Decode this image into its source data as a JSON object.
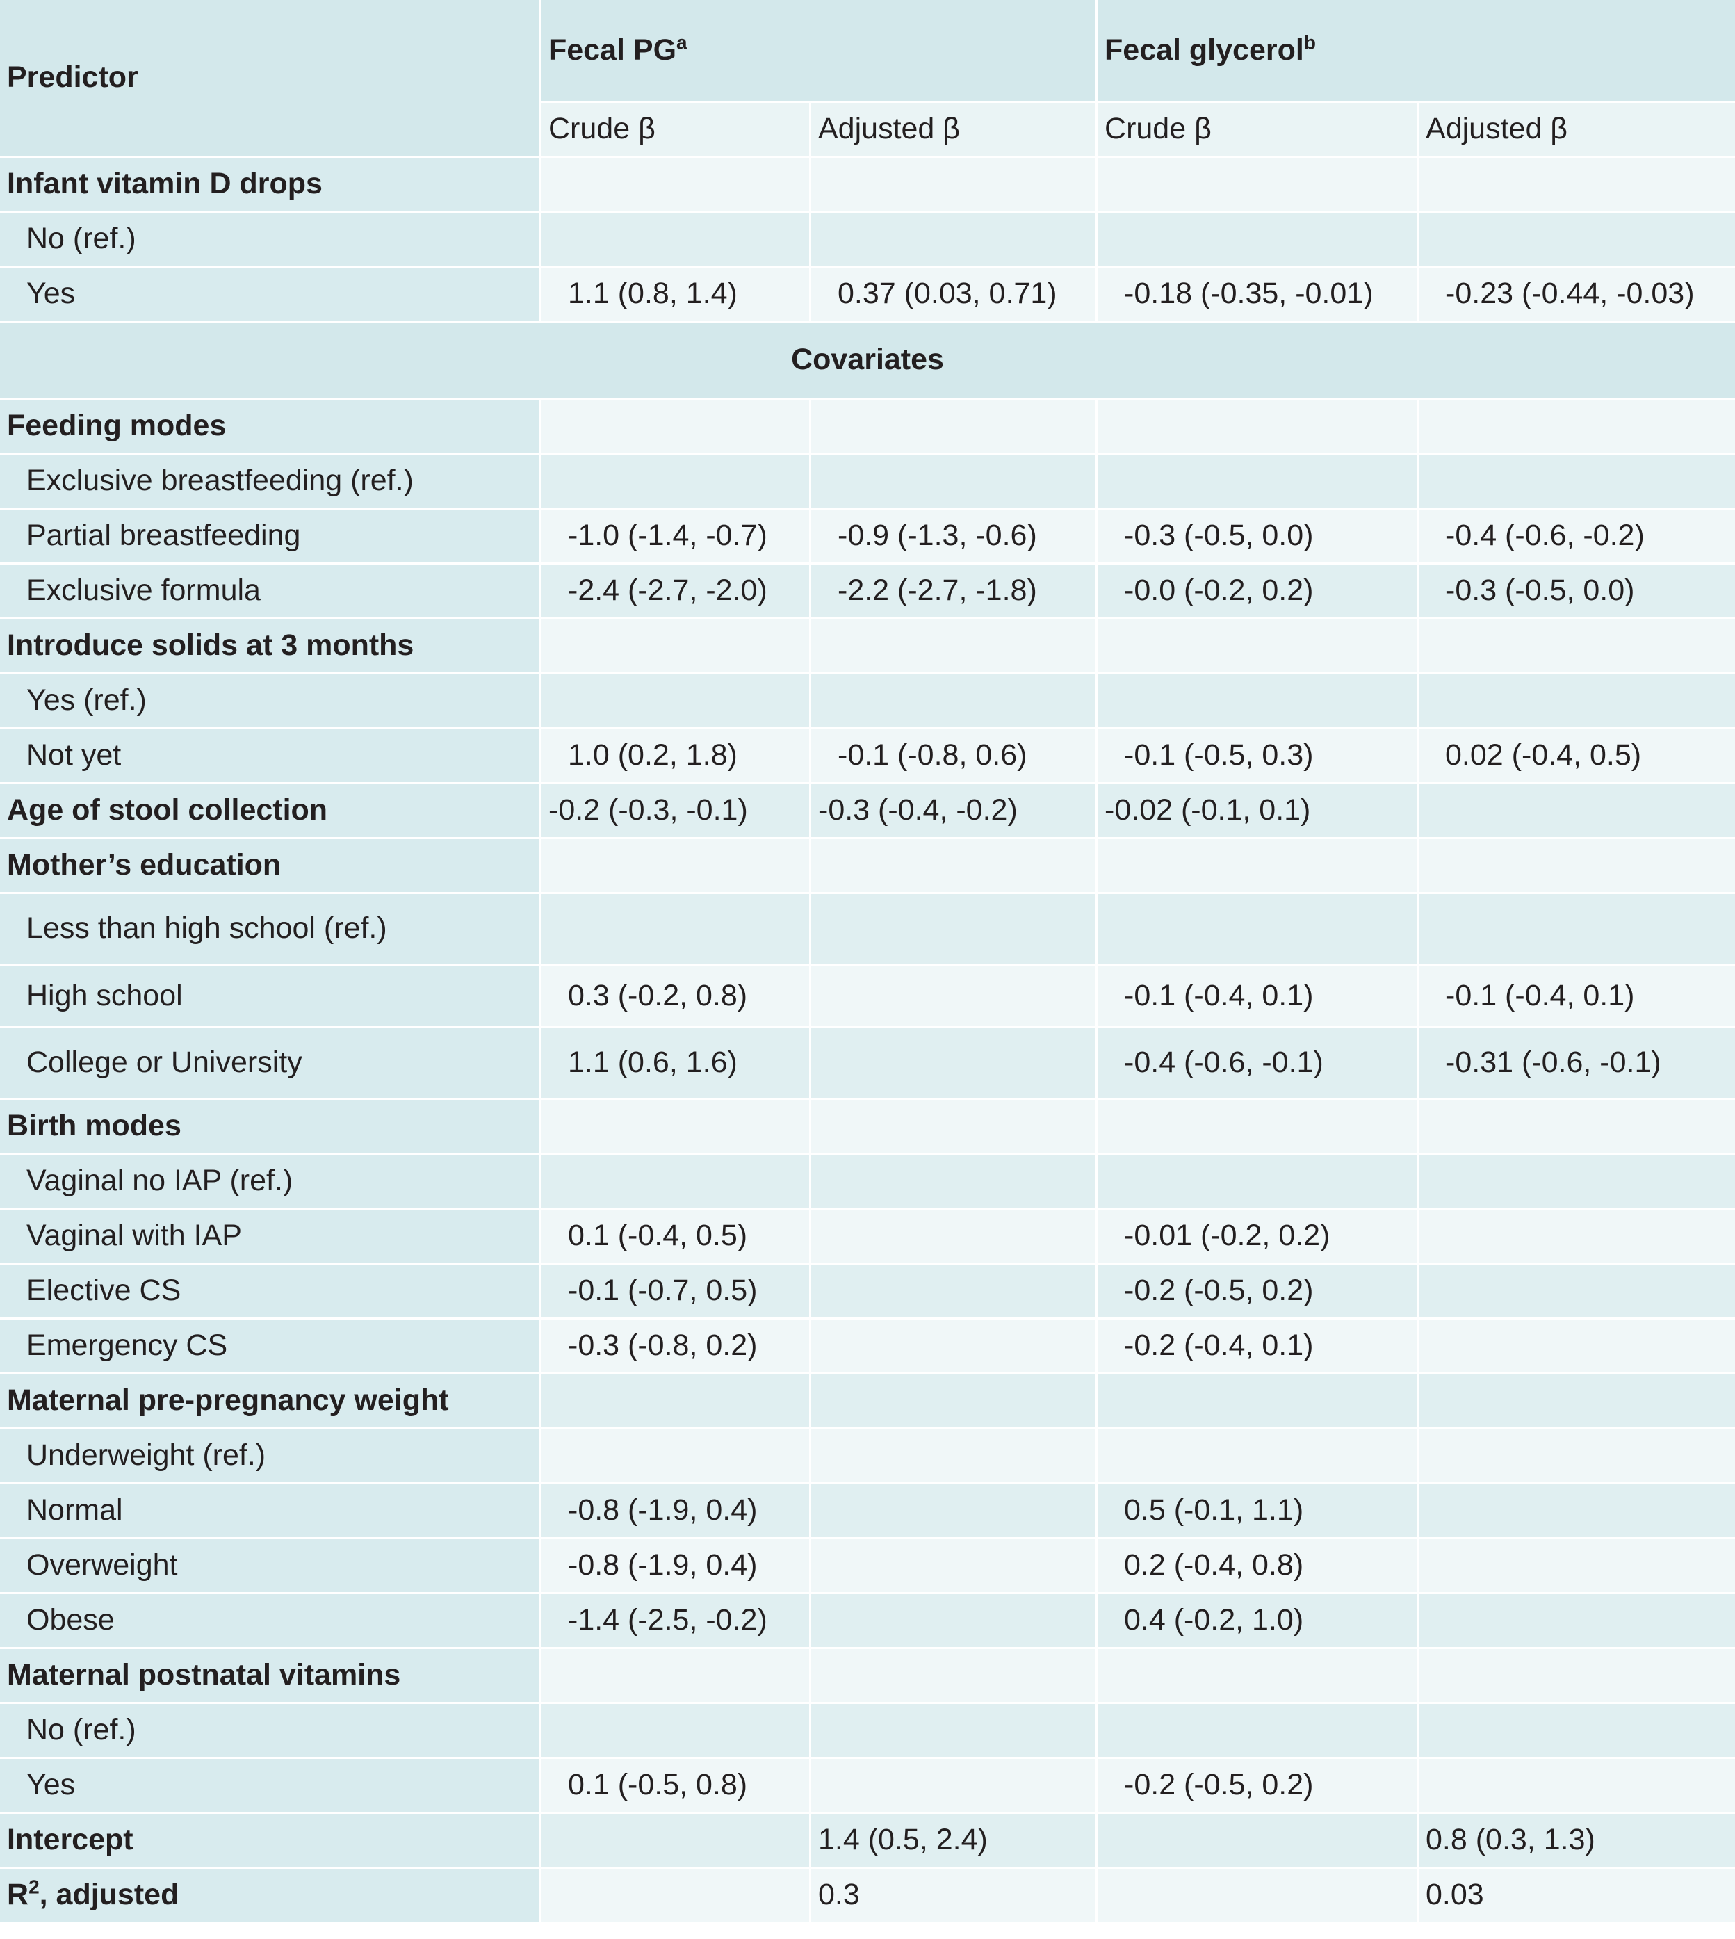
{
  "header": {
    "predictor": "Predictor",
    "pg_label": "Fecal PG",
    "pg_sup": "a",
    "gly_label": "Fecal glycerol",
    "gly_sup": "b",
    "crude": "Crude β",
    "adjusted": "Adjusted  β",
    "covariates": "Covariates"
  },
  "rows": {
    "vitd": {
      "label": "Infant vitamin D drops"
    },
    "vitd_no": {
      "label": "No (ref.)"
    },
    "vitd_yes": {
      "label": "Yes",
      "c1": "1.1 (0.8, 1.4)",
      "c2": "0.37 (0.03, 0.71)",
      "c3": "-0.18 (-0.35, -0.01)",
      "c4": "-0.23 (-0.44, -0.03)"
    },
    "feed": {
      "label": "Feeding modes"
    },
    "feed_ex": {
      "label": "Exclusive breastfeeding (ref.)"
    },
    "feed_part": {
      "label": "Partial breastfeeding",
      "c1": "-1.0 (-1.4, -0.7)",
      "c2": "-0.9 (-1.3, -0.6)",
      "c3": "-0.3 (-0.5, 0.0)",
      "c4": "-0.4 (-0.6, -0.2)"
    },
    "feed_form": {
      "label": "Exclusive formula",
      "c1": "-2.4 (-2.7, -2.0)",
      "c2": "-2.2 (-2.7, -1.8)",
      "c3": "-0.0 (-0.2, 0.2)",
      "c4": "-0.3 (-0.5, 0.0)"
    },
    "solids": {
      "label": "Introduce solids at 3 months"
    },
    "solids_yes": {
      "label": "Yes (ref.)"
    },
    "solids_not": {
      "label": "Not yet",
      "c1": "1.0 (0.2, 1.8)",
      "c2": "-0.1 (-0.8, 0.6)",
      "c3": "-0.1 (-0.5, 0.3)",
      "c4": "0.02 (-0.4, 0.5)"
    },
    "age": {
      "label": "Age of stool collection",
      "c1": "-0.2 (-0.3, -0.1)",
      "c2": "-0.3 (-0.4, -0.2)",
      "c3": "-0.02 (-0.1, 0.1)"
    },
    "edu": {
      "label": "Mother’s education"
    },
    "edu_less": {
      "label": "Less than high school (ref.)"
    },
    "edu_hs": {
      "label": "High school",
      "c1": "0.3 (-0.2, 0.8)",
      "c3": "-0.1 (-0.4, 0.1)",
      "c4": "-0.1 (-0.4, 0.1)"
    },
    "edu_col": {
      "label": "College or University",
      "c1": "1.1 (0.6, 1.6)",
      "c3": "-0.4 (-0.6, -0.1)",
      "c4": "-0.31 (-0.6, -0.1)"
    },
    "birth": {
      "label": "Birth modes"
    },
    "birth_vag": {
      "label": "Vaginal no IAP (ref.)"
    },
    "birth_iap": {
      "label": "Vaginal with IAP",
      "c1": "0.1 (-0.4, 0.5)",
      "c3": "-0.01 (-0.2, 0.2)"
    },
    "birth_el": {
      "label": "Elective CS",
      "c1": "-0.1 (-0.7, 0.5)",
      "c3": "-0.2 (-0.5, 0.2)"
    },
    "birth_em": {
      "label": "Emergency CS",
      "c1": "-0.3 (-0.8, 0.2)",
      "c3": "-0.2 (-0.4, 0.1)"
    },
    "wt": {
      "label": "Maternal pre-pregnancy weight"
    },
    "wt_under": {
      "label": "Underweight (ref.)"
    },
    "wt_norm": {
      "label": "Normal",
      "c1": "-0.8 (-1.9, 0.4)",
      "c3": "0.5 (-0.1, 1.1)"
    },
    "wt_over": {
      "label": "Overweight",
      "c1": "-0.8 (-1.9, 0.4)",
      "c3": "0.2 (-0.4, 0.8)"
    },
    "wt_obese": {
      "label": "Obese",
      "c1": "-1.4 (-2.5, -0.2)",
      "c3": "0.4 (-0.2, 1.0)"
    },
    "vit": {
      "label": "Maternal postnatal vitamins"
    },
    "vit_no": {
      "label": "No (ref.)"
    },
    "vit_yes": {
      "label": "Yes",
      "c1": "0.1 (-0.5, 0.8)",
      "c3": "-0.2 (-0.5, 0.2)"
    },
    "intercept": {
      "label": "Intercept",
      "c2": "1.4 (0.5, 2.4)",
      "c4": "0.8 (0.3, 1.3)"
    },
    "r2": {
      "label": "R",
      "sup": "2",
      "label_rest": ", adjusted",
      "c2": "0.3",
      "c4": "0.03"
    }
  }
}
